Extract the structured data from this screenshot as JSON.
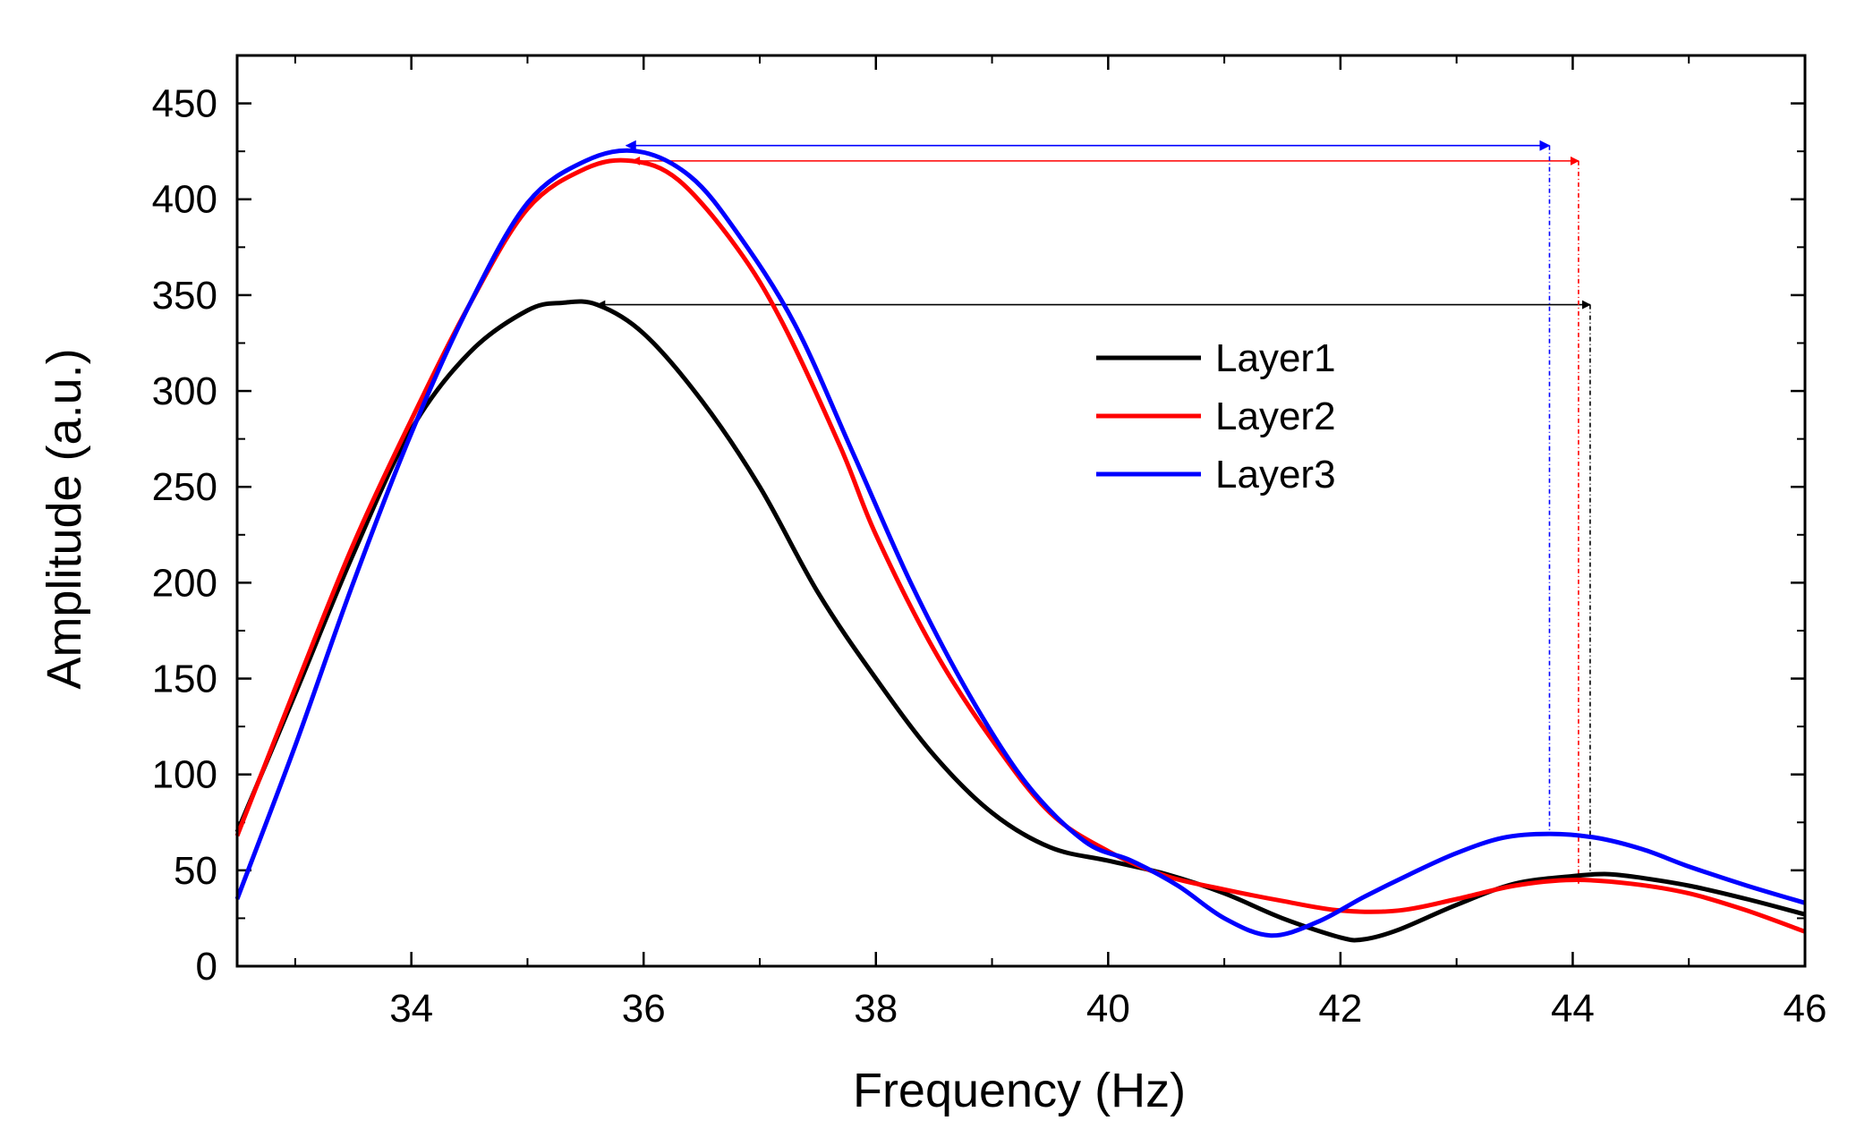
{
  "chart_data": {
    "type": "line",
    "xlabel": "Frequency (Hz)",
    "ylabel": "Amplitude (a.u.)",
    "xlim": [
      32.5,
      46
    ],
    "ylim": [
      0,
      475
    ],
    "xticks": [
      34,
      36,
      38,
      40,
      42,
      44,
      46
    ],
    "yticks": [
      0,
      50,
      100,
      150,
      200,
      250,
      300,
      350,
      400,
      450
    ],
    "legend_position": "center-right",
    "series": [
      {
        "name": "Layer1",
        "color": "#000000",
        "x": [
          32.5,
          33,
          33.5,
          34,
          34.5,
          35,
          35.3,
          35.6,
          36,
          36.5,
          37,
          37.5,
          38,
          38.5,
          39,
          39.5,
          40,
          40.5,
          41,
          41.5,
          42,
          42.2,
          42.5,
          43,
          43.5,
          44,
          44.3,
          44.6,
          45,
          45.5,
          46
        ],
        "y": [
          70,
          142,
          215,
          280,
          320,
          342,
          346,
          345,
          330,
          295,
          250,
          195,
          150,
          110,
          80,
          62,
          55,
          48,
          38,
          25,
          15,
          14,
          19,
          32,
          43,
          47,
          48,
          46,
          42,
          35,
          27
        ]
      },
      {
        "name": "Layer2",
        "color": "#ff0000",
        "x": [
          32.5,
          33,
          33.5,
          34,
          34.5,
          35,
          35.5,
          35.9,
          36.3,
          36.8,
          37.2,
          37.7,
          38,
          38.5,
          39,
          39.5,
          40,
          40.5,
          41,
          41.5,
          42,
          42.5,
          43,
          43.5,
          44,
          44.5,
          45,
          45.5,
          46
        ],
        "y": [
          68,
          145,
          220,
          285,
          345,
          395,
          416,
          420,
          410,
          375,
          335,
          270,
          225,
          165,
          118,
          80,
          60,
          47,
          40,
          34,
          29,
          29,
          35,
          42,
          45,
          43,
          38,
          29,
          18
        ]
      },
      {
        "name": "Layer3",
        "color": "#0000ff",
        "x": [
          32.5,
          33,
          33.5,
          34,
          34.5,
          35,
          35.5,
          35.95,
          36.4,
          36.8,
          37.3,
          37.8,
          38.3,
          38.8,
          39.3,
          39.8,
          40.2,
          40.6,
          41,
          41.4,
          41.8,
          42.2,
          42.6,
          43,
          43.4,
          43.8,
          44.2,
          44.6,
          45,
          45.5,
          46
        ],
        "y": [
          35,
          115,
          200,
          278,
          345,
          398,
          420,
          425,
          412,
          383,
          335,
          268,
          200,
          142,
          95,
          65,
          55,
          42,
          25,
          16,
          23,
          36,
          48,
          59,
          67,
          69,
          67,
          61,
          52,
          42,
          33
        ]
      }
    ],
    "annotations": [
      {
        "name": "Layer1-arrow",
        "color": "#000000",
        "x_start": 35.6,
        "x_end": 44.15,
        "y": 345
      },
      {
        "name": "Layer2-arrow",
        "color": "#ff0000",
        "x_start": 35.9,
        "x_end": 44.05,
        "y": 420
      },
      {
        "name": "Layer3-arrow",
        "color": "#0000ff",
        "x_start": 35.85,
        "x_end": 43.8,
        "y": 428
      }
    ]
  }
}
